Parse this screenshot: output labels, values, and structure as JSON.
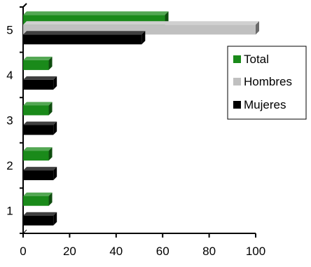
{
  "chart_data": {
    "type": "bar",
    "orientation": "horizontal",
    "style": "3d",
    "categories": [
      "1",
      "2",
      "3",
      "4",
      "5"
    ],
    "series": [
      {
        "name": "Total",
        "values": [
          11,
          11,
          11,
          11,
          61
        ],
        "color": "#1a8a1a"
      },
      {
        "name": "Hombres",
        "values": [
          0,
          0,
          0,
          0,
          100
        ],
        "color": "#c0c0c0"
      },
      {
        "name": "Mujeres",
        "values": [
          13,
          13,
          13,
          13,
          51
        ],
        "color": "#000000"
      }
    ],
    "xlim": [
      0,
      100
    ],
    "x_ticks": [
      "0",
      "20",
      "40",
      "60",
      "80",
      "100"
    ],
    "grid": false,
    "legend_position": "right"
  }
}
